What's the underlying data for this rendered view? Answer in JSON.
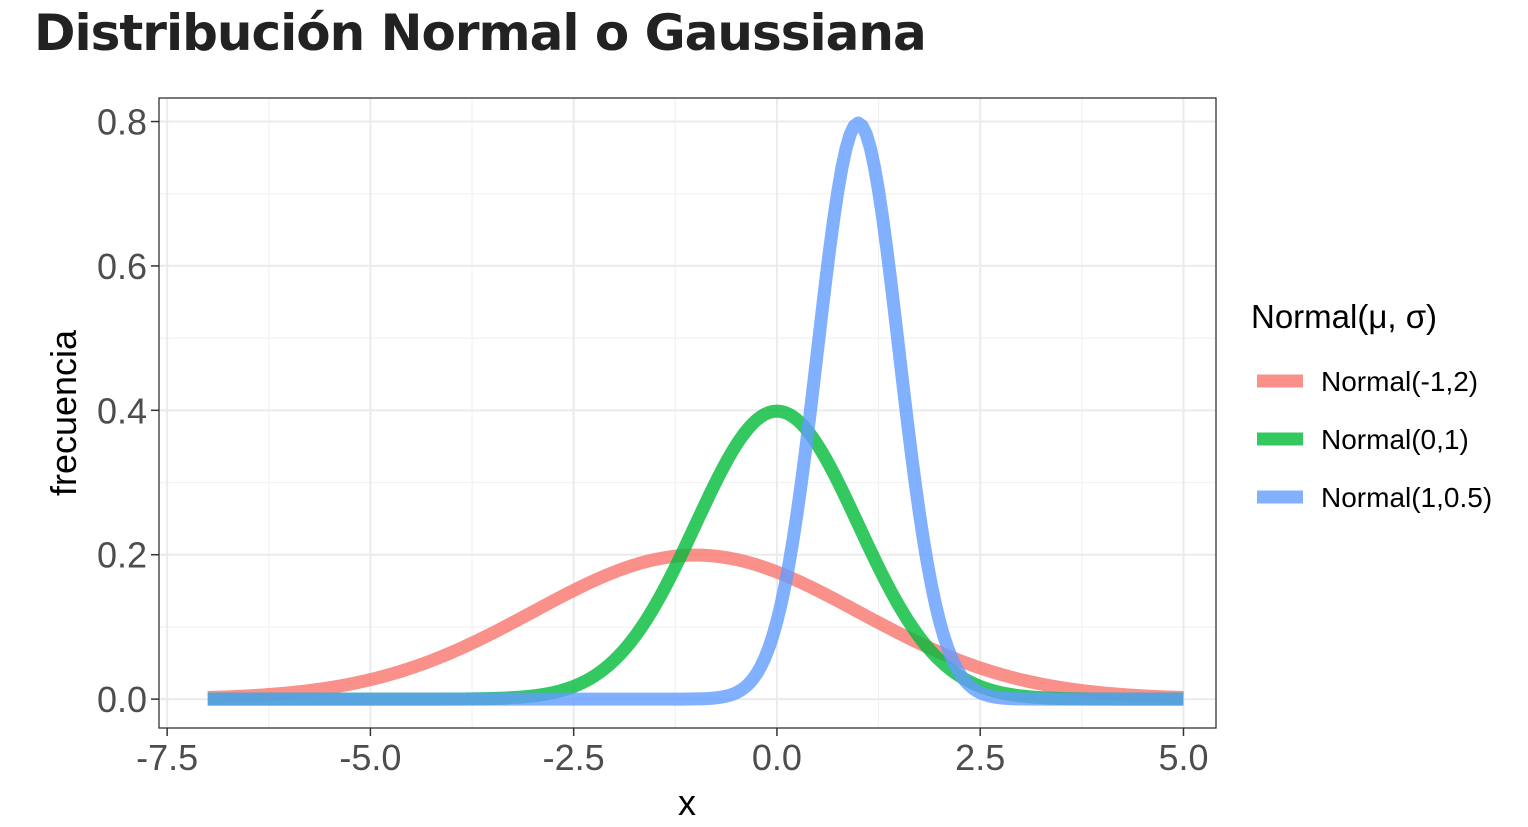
{
  "chart_data": {
    "type": "line",
    "title": "Distribución Normal o Gaussiana",
    "xlabel": "x",
    "ylabel": "frecuencia",
    "xlim": [
      -7.5,
      5.0
    ],
    "ylim": [
      0.0,
      0.8
    ],
    "x_ticks": [
      "-7.5",
      "-5.0",
      "-2.5",
      "0.0",
      "2.5",
      "5.0"
    ],
    "y_ticks": [
      "0.0",
      "0.2",
      "0.4",
      "0.6",
      "0.8"
    ],
    "grid": true,
    "legend": {
      "title": "Normal(μ, σ)",
      "position": "right"
    },
    "series": [
      {
        "name": "Normal(-1,2)",
        "mean": -1,
        "sd": 2,
        "color": "#F8766D",
        "x": [
          -7,
          -6.5,
          -6,
          -5.5,
          -5,
          -4.5,
          -4,
          -3.5,
          -3,
          -2.5,
          -2,
          -1.5,
          -1,
          -0.5,
          0,
          0.5,
          1,
          1.5,
          2,
          2.5,
          3,
          3.5,
          4,
          4.5,
          5
        ],
        "y": [
          0.0022,
          0.0045,
          0.0088,
          0.0159,
          0.027,
          0.0431,
          0.0648,
          0.0913,
          0.121,
          0.1506,
          0.176,
          0.1933,
          0.1995,
          0.1933,
          0.176,
          0.1506,
          0.121,
          0.0913,
          0.0648,
          0.0431,
          0.027,
          0.0159,
          0.0088,
          0.0045,
          0.0022
        ]
      },
      {
        "name": "Normal(0,1)",
        "mean": 0,
        "sd": 1,
        "color": "#00BA38",
        "x": [
          -7,
          -6.5,
          -6,
          -5.5,
          -5,
          -4.5,
          -4,
          -3.5,
          -3,
          -2.5,
          -2,
          -1.5,
          -1,
          -0.5,
          0,
          0.5,
          1,
          1.5,
          2,
          2.5,
          3,
          3.5,
          4,
          4.5,
          5
        ],
        "y": [
          0.0,
          0.0,
          0.0,
          0.0,
          0.0,
          0.0,
          0.0001,
          0.0009,
          0.0044,
          0.0175,
          0.054,
          0.1295,
          0.242,
          0.3521,
          0.3989,
          0.3521,
          0.242,
          0.1295,
          0.054,
          0.0175,
          0.0044,
          0.0009,
          0.0001,
          0.0,
          0.0
        ]
      },
      {
        "name": "Normal(1,0.5)",
        "mean": 1,
        "sd": 0.5,
        "color": "#619CFF",
        "x": [
          -7,
          -6.5,
          -6,
          -5.5,
          -5,
          -4.5,
          -4,
          -3.5,
          -3,
          -2.5,
          -2,
          -1.5,
          -1,
          -0.5,
          0,
          0.5,
          1,
          1.5,
          2,
          2.5,
          3,
          3.5,
          4,
          4.5,
          5
        ],
        "y": [
          0.0,
          0.0,
          0.0,
          0.0,
          0.0,
          0.0,
          0.0,
          0.0,
          0.0,
          0.0,
          0.0,
          0.0,
          0.0003,
          0.0089,
          0.108,
          0.4839,
          0.7979,
          0.4839,
          0.108,
          0.0089,
          0.0003,
          0.0,
          0.0,
          0.0,
          0.0
        ]
      }
    ]
  }
}
